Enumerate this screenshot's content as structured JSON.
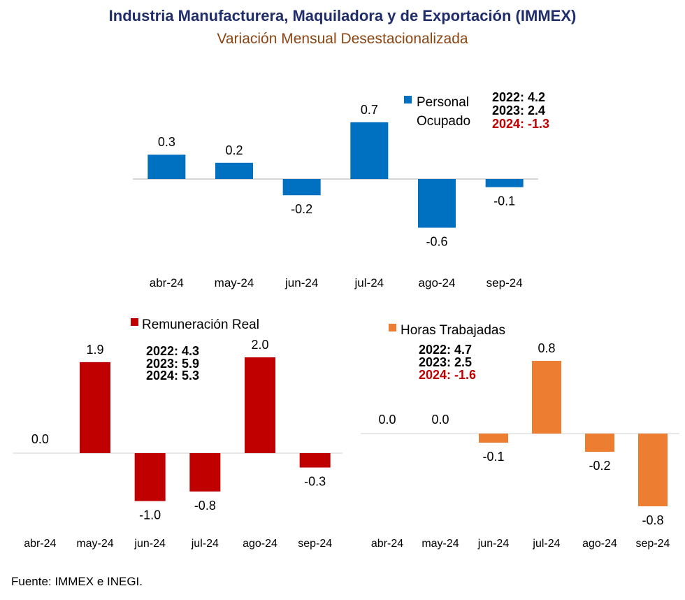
{
  "title": "Industria Manufacturera, Maquiladora y de Exportación (IMMEX)",
  "subtitle": "Variación Mensual Desestacionalizada",
  "source": "Fuente:  IMMEX e INEGI.",
  "chart_data": [
    {
      "type": "bar",
      "title": "Personal Ocupado",
      "legend_lines": [
        "Personal",
        "Ocupado"
      ],
      "color": "#0070c0",
      "categories": [
        "abr-24",
        "may-24",
        "jun-24",
        "jul-24",
        "ago-24",
        "sep-24"
      ],
      "values": [
        0.3,
        0.2,
        -0.2,
        0.7,
        -0.6,
        -0.1
      ],
      "value_labels": [
        "0.3",
        "0.2",
        "-0.2",
        "0.7",
        "-0.6",
        "-0.1"
      ],
      "annual": [
        {
          "text": "2022: 4.2",
          "color": "#000000"
        },
        {
          "text": "2023: 2.4",
          "color": "#000000"
        },
        {
          "text": "2024: -1.3",
          "color": "#c00000"
        }
      ],
      "legend_position": "top-right",
      "grid": false
    },
    {
      "type": "bar",
      "title": "Remuneración Real",
      "legend_lines": [
        "Remuneración Real"
      ],
      "color": "#c00000",
      "categories": [
        "abr-24",
        "may-24",
        "jun-24",
        "jul-24",
        "ago-24",
        "sep-24"
      ],
      "values": [
        0.0,
        1.9,
        -1.0,
        -0.8,
        2.0,
        -0.3
      ],
      "value_labels": [
        "0.0",
        "1.9",
        "-1.0",
        "-0.8",
        "2.0",
        "-0.3"
      ],
      "annual": [
        {
          "text": "2022: 4.3",
          "color": "#000000"
        },
        {
          "text": "2023: 5.9",
          "color": "#000000"
        },
        {
          "text": "2024: 5.3",
          "color": "#000000"
        }
      ],
      "legend_position": "top",
      "grid": false
    },
    {
      "type": "bar",
      "title": "Horas Trabajadas",
      "legend_lines": [
        "Horas Trabajadas"
      ],
      "color": "#ed7d31",
      "categories": [
        "abr-24",
        "may-24",
        "jun-24",
        "jul-24",
        "ago-24",
        "sep-24"
      ],
      "values": [
        0.0,
        0.0,
        -0.1,
        0.8,
        -0.2,
        -0.8
      ],
      "value_labels": [
        "0.0",
        "0.0",
        "-0.1",
        "0.8",
        "-0.2",
        "-0.8"
      ],
      "annual": [
        {
          "text": "2022: 4.7",
          "color": "#000000"
        },
        {
          "text": "2023: 2.5",
          "color": "#000000"
        },
        {
          "text": "2024: -1.6",
          "color": "#c00000"
        }
      ],
      "legend_position": "top",
      "grid": false
    }
  ]
}
